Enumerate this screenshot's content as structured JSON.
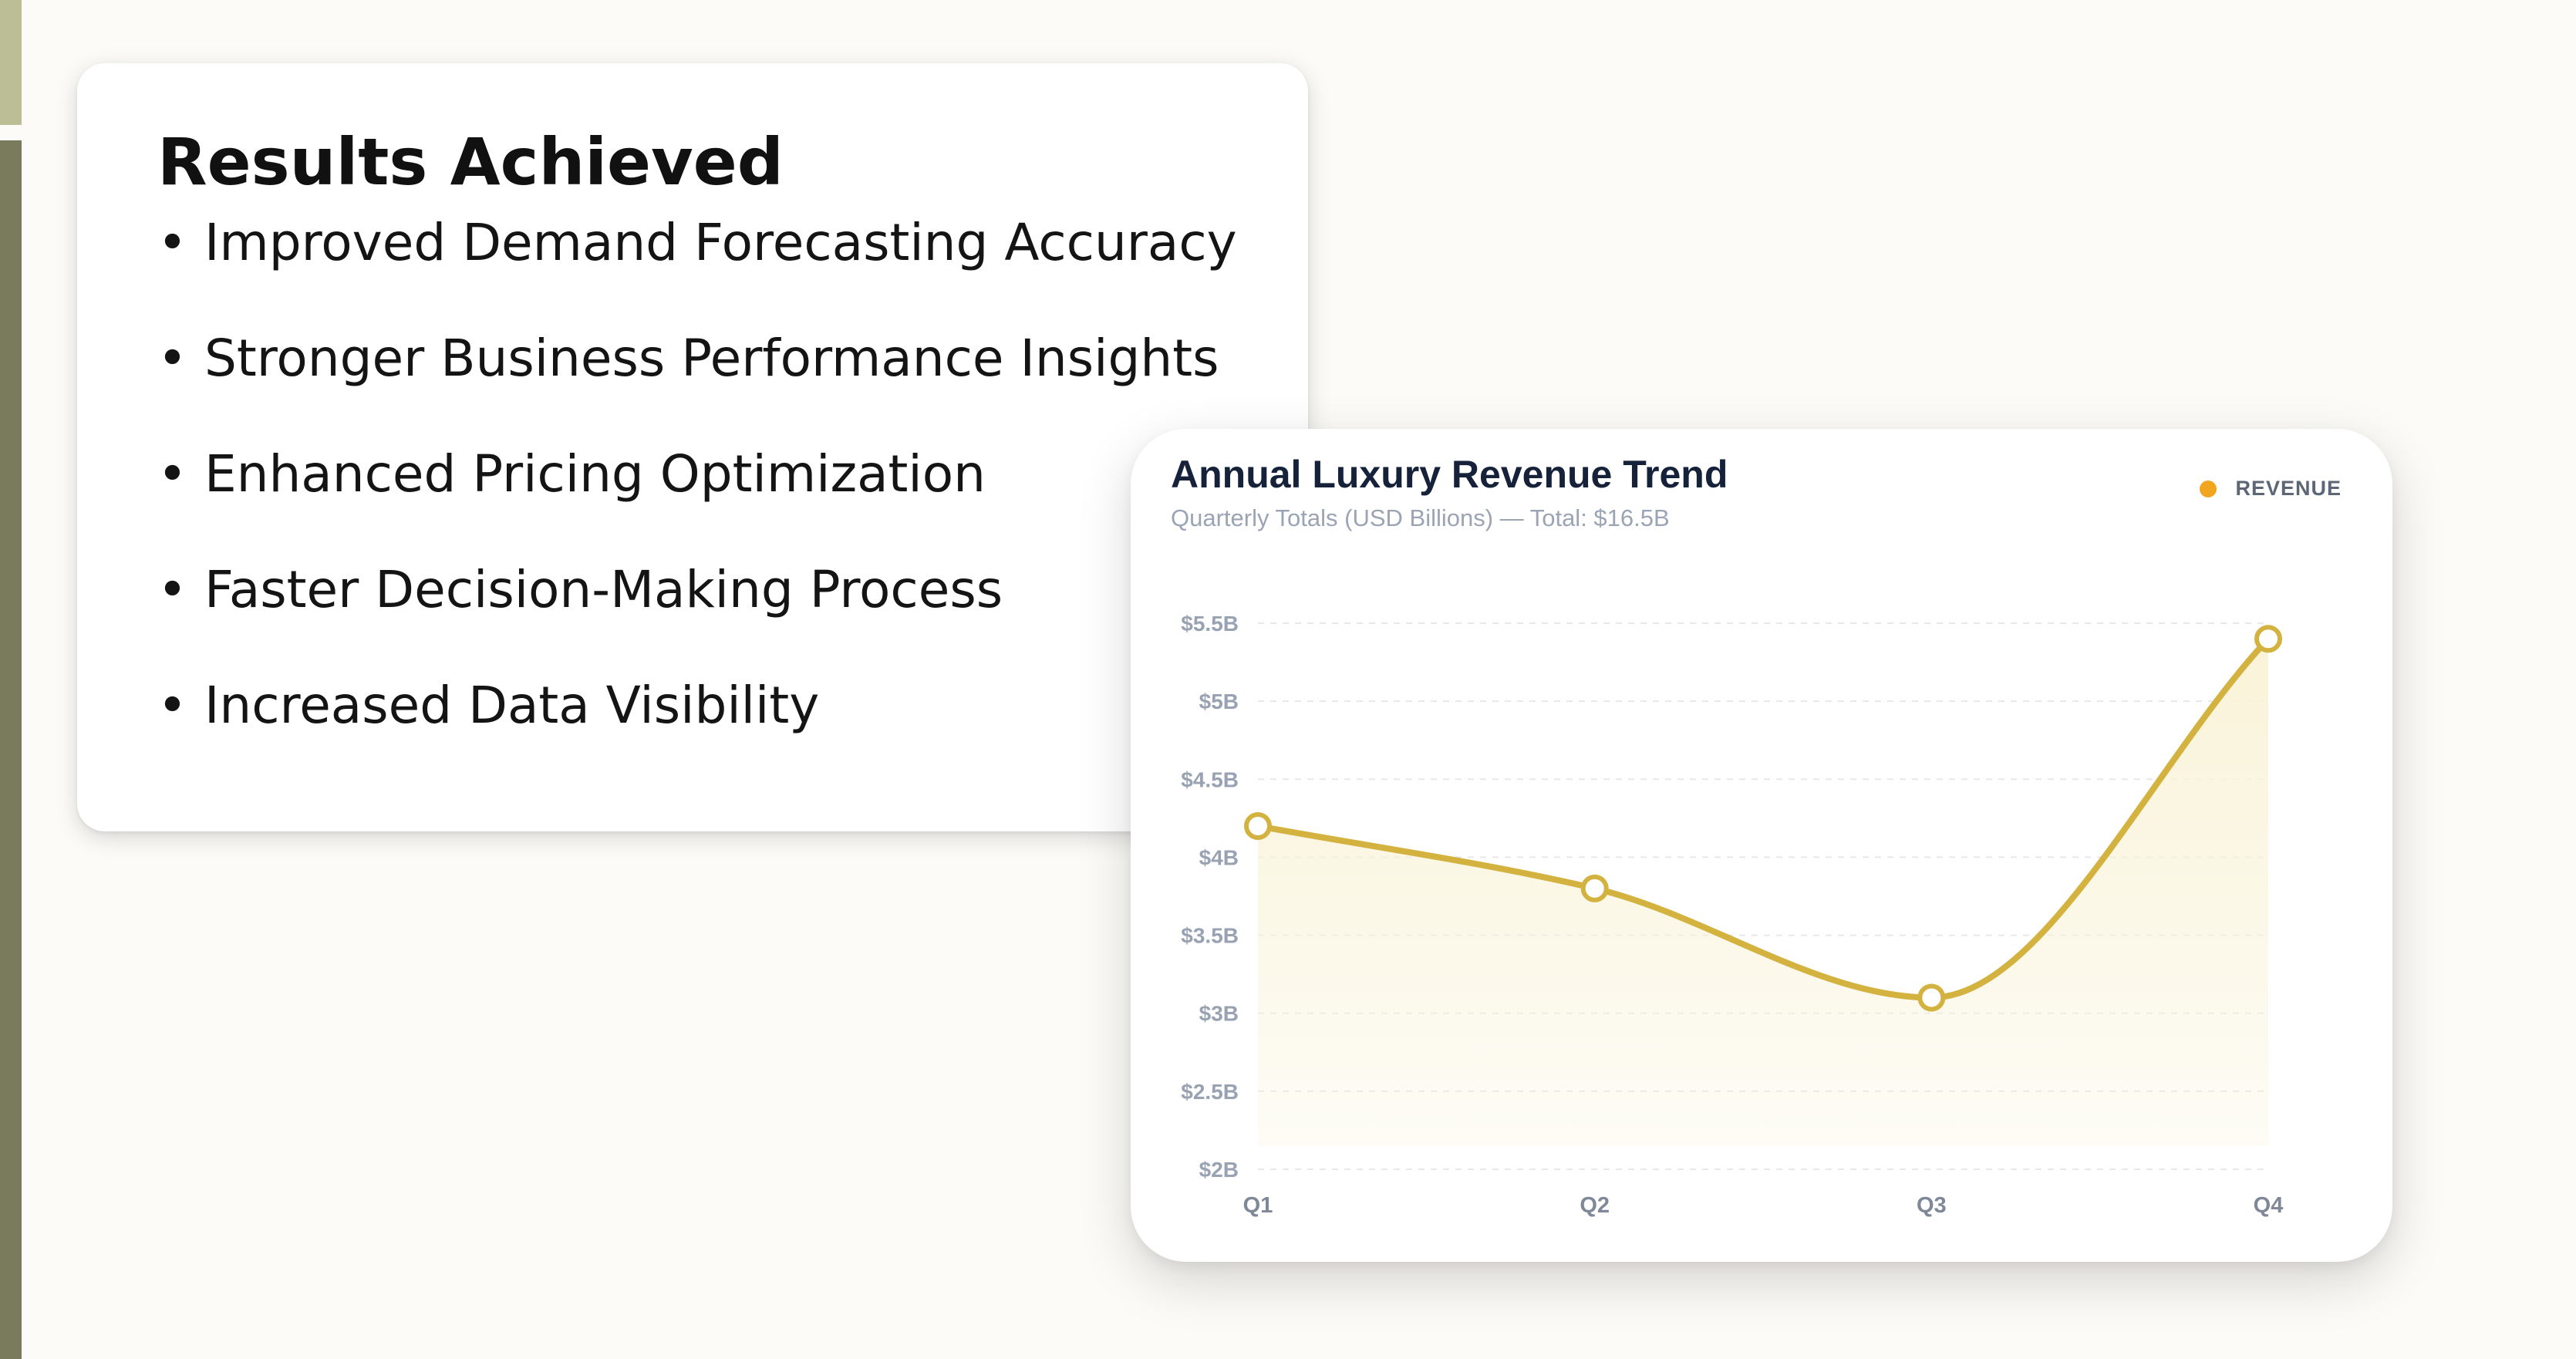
{
  "results": {
    "title": "Results Achieved",
    "bullet_glyph": "•",
    "items": [
      "Improved Demand Forecasting Accuracy",
      "Stronger Business Performance Insights",
      "Enhanced Pricing Optimization",
      "Faster Decision-Making Process",
      "Increased Data Visibility"
    ]
  },
  "colors": {
    "accent_light": "#bcbf96",
    "accent_dark": "#7a7a5c",
    "line": "#d4b23f",
    "legend_dot": "#f2a51e",
    "area": "#f9f3d8"
  },
  "chart_data": {
    "type": "line",
    "title": "Annual Luxury Revenue Trend",
    "subtitle": "Quarterly Totals (USD Billions) — Total: $16.5B",
    "categories": [
      "Q1",
      "Q2",
      "Q3",
      "Q4"
    ],
    "series": [
      {
        "name": "REVENUE",
        "values": [
          4.2,
          3.8,
          3.1,
          5.4
        ]
      }
    ],
    "ylim": [
      2,
      5.5
    ],
    "yticks": [
      2,
      2.5,
      3,
      3.5,
      4,
      4.5,
      5,
      5.5
    ],
    "ytick_labels": [
      "$2B",
      "$2.5B",
      "$3B",
      "$3.5B",
      "$4B",
      "$4.5B",
      "$5B",
      "$5.5B"
    ],
    "grid": true,
    "legend_position": "top-right",
    "smooth": true,
    "area_fill": true
  }
}
